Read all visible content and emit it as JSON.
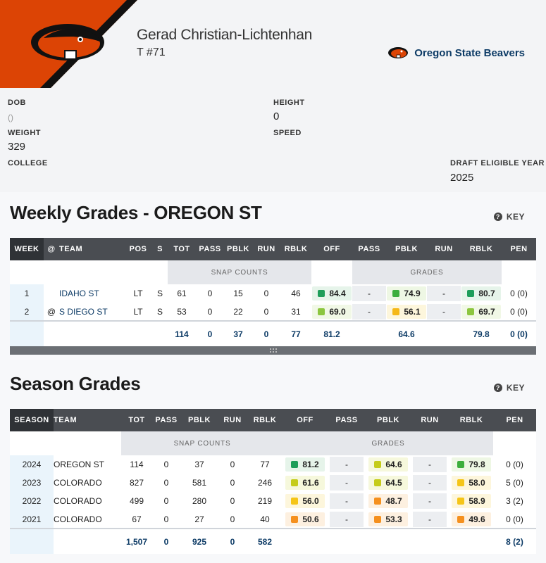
{
  "player": {
    "name": "Gerad Christian-Lichtenhan",
    "position_number": "T #71",
    "team_name": "Oregon State Beavers"
  },
  "bio": {
    "dob_label": "DOB",
    "dob_value": "()",
    "height_label": "HEIGHT",
    "height_value": "0",
    "weight_label": "WEIGHT",
    "weight_value": "329",
    "speed_label": "SPEED",
    "college_label": "COLLEGE",
    "draft_label": "DRAFT ELIGIBLE YEAR",
    "draft_value": "2025"
  },
  "colors": {
    "brand_orange": "#dc4405",
    "grade_green_dark": "#1e9e5a",
    "grade_green_light": "#8cc63f",
    "grade_yellow": "#f5c518",
    "grade_orange": "#f5901e"
  },
  "weekly": {
    "title": "Weekly Grades - OREGON ST",
    "key_label": "KEY",
    "group_snap": "SNAP COUNTS",
    "group_grades": "GRADES",
    "headers": [
      "WEEK",
      "@",
      "TEAM",
      "POS",
      "S",
      "TOT",
      "PASS",
      "PBLK",
      "RUN",
      "RBLK",
      "OFF",
      "PASS",
      "PBLK",
      "RUN",
      "RBLK",
      "PEN"
    ],
    "rows": [
      {
        "week": "1",
        "at": "",
        "team": "IDAHO ST",
        "pos": "LT",
        "s": "S",
        "tot": "61",
        "pass": "0",
        "pblk": "15",
        "run": "0",
        "rblk": "46",
        "off": "84.4",
        "gpass": "-",
        "gpblk": "74.9",
        "grun": "-",
        "grblk": "80.7",
        "pen": "0 (0)"
      },
      {
        "week": "2",
        "at": "@",
        "team": "S DIEGO ST",
        "pos": "LT",
        "s": "S",
        "tot": "53",
        "pass": "0",
        "pblk": "22",
        "run": "0",
        "rblk": "31",
        "off": "69.0",
        "gpass": "-",
        "gpblk": "56.1",
        "grun": "-",
        "grblk": "69.7",
        "pen": "0 (0)"
      }
    ],
    "totals": {
      "tot": "114",
      "pass": "0",
      "pblk": "37",
      "run": "0",
      "rblk": "77",
      "off": "81.2",
      "gpblk": "64.6",
      "grblk": "79.8",
      "pen": "0 (0)"
    }
  },
  "season": {
    "title": "Season Grades",
    "key_label": "KEY",
    "group_snap": "SNAP COUNTS",
    "group_grades": "GRADES",
    "headers": [
      "SEASON",
      "TEAM",
      "TOT",
      "PASS",
      "PBLK",
      "RUN",
      "RBLK",
      "OFF",
      "PASS",
      "PBLK",
      "RUN",
      "RBLK",
      "PEN"
    ],
    "rows": [
      {
        "season": "2024",
        "team": "OREGON ST",
        "tot": "114",
        "pass": "0",
        "pblk": "37",
        "run": "0",
        "rblk": "77",
        "off": "81.2",
        "gpass": "-",
        "gpblk": "64.6",
        "grun": "-",
        "grblk": "79.8",
        "pen": "0 (0)"
      },
      {
        "season": "2023",
        "team": "COLORADO",
        "tot": "827",
        "pass": "0",
        "pblk": "581",
        "run": "0",
        "rblk": "246",
        "off": "61.6",
        "gpass": "-",
        "gpblk": "64.5",
        "grun": "-",
        "grblk": "58.0",
        "pen": "5 (0)"
      },
      {
        "season": "2022",
        "team": "COLORADO",
        "tot": "499",
        "pass": "0",
        "pblk": "280",
        "run": "0",
        "rblk": "219",
        "off": "56.0",
        "gpass": "-",
        "gpblk": "48.7",
        "grun": "-",
        "grblk": "58.9",
        "pen": "3 (2)"
      },
      {
        "season": "2021",
        "team": "COLORADO",
        "tot": "67",
        "pass": "0",
        "pblk": "27",
        "run": "0",
        "rblk": "40",
        "off": "50.6",
        "gpass": "-",
        "gpblk": "53.3",
        "grun": "-",
        "grblk": "49.6",
        "pen": "0 (0)"
      }
    ],
    "totals": {
      "tot": "1,507",
      "pass": "0",
      "pblk": "925",
      "run": "0",
      "rblk": "582",
      "pen": "8 (2)"
    }
  }
}
